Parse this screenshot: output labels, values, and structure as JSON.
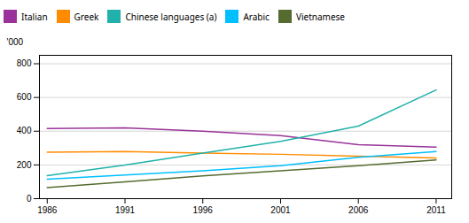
{
  "chart_data": {
    "type": "line",
    "x": [
      1986,
      1991,
      1996,
      2001,
      2006,
      2011
    ],
    "series": [
      {
        "name": "Italian",
        "color": "#993399",
        "values": [
          416,
          420,
          400,
          374,
          320,
          305
        ]
      },
      {
        "name": "Greek",
        "color": "#FF8C00",
        "values": [
          275,
          280,
          270,
          263,
          252,
          242
        ]
      },
      {
        "name": "Chinese languages (a)",
        "color": "#20B2AA",
        "values": [
          137,
          200,
          270,
          340,
          430,
          645
        ]
      },
      {
        "name": "Arabic",
        "color": "#00BFFF",
        "values": [
          115,
          140,
          165,
          195,
          245,
          280
        ]
      },
      {
        "name": "Vietnamese",
        "color": "#556B2F",
        "values": [
          65,
          100,
          135,
          165,
          195,
          230
        ]
      }
    ],
    "ylabel": "'000",
    "xlim": [
      1985.5,
      2012
    ],
    "xticks": [
      1986,
      1991,
      1996,
      2001,
      2006,
      2011
    ],
    "ylim": [
      0,
      850
    ],
    "yticks": [
      0,
      200,
      400,
      600,
      800
    ],
    "grid": true,
    "legend": "top"
  }
}
